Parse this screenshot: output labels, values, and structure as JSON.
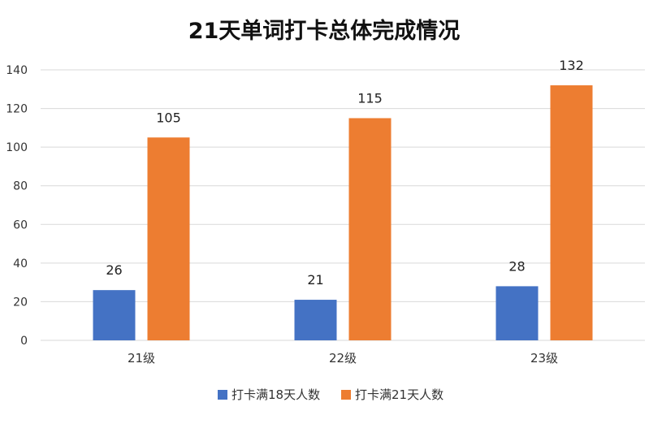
{
  "chart_data": {
    "type": "bar",
    "title": "21天单词打卡总体完成情况",
    "xlabel": "",
    "ylabel": "",
    "categories": [
      "21级",
      "22级",
      "23级"
    ],
    "series": [
      {
        "name": "打卡满18天人数",
        "values": [
          26,
          21,
          28
        ],
        "color": "#4472C4"
      },
      {
        "name": "打卡满21天人数",
        "values": [
          105,
          115,
          132
        ],
        "color": "#ED7D31"
      }
    ],
    "ylim": [
      0,
      140
    ],
    "yticks": [
      0,
      20,
      40,
      60,
      80,
      100,
      120,
      140
    ],
    "grid": true,
    "gridColor": "#D9D9D9",
    "legend": "bottom-center"
  }
}
